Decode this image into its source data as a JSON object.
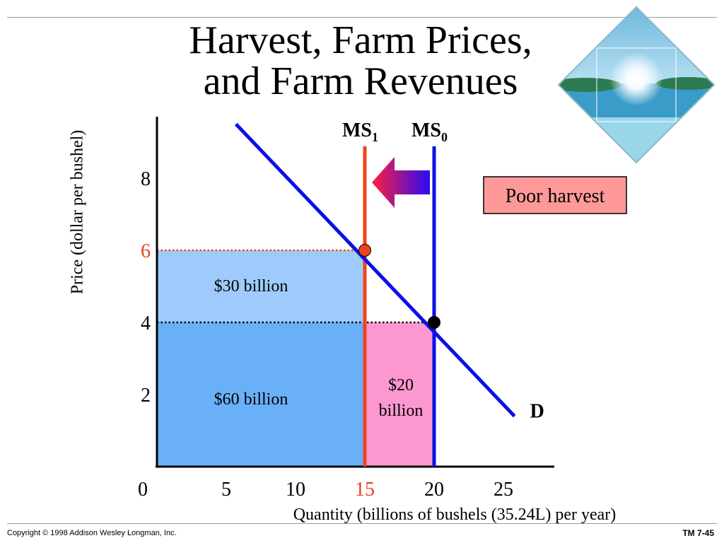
{
  "slide": {
    "title_line1": "Harvest, Farm Prices,",
    "title_line2": "and Farm Revenues",
    "copyright": "Copyright © 1998 Addison Wesley Longman, Inc.",
    "slide_number": "TM 7-45",
    "thumbnail_icon": "beach-scene-icon"
  },
  "chart_data": {
    "type": "line",
    "xlabel": "Quantity (billions of bushels (35.24L) per year)",
    "ylabel": "Price (dollar per bushel)",
    "xlim": [
      0,
      28
    ],
    "ylim": [
      0,
      10
    ],
    "x_ticks": [
      {
        "value": 0,
        "label": "0"
      },
      {
        "value": 5,
        "label": "5"
      },
      {
        "value": 10,
        "label": "10"
      },
      {
        "value": 15,
        "label": "15",
        "color": "#e4421a"
      },
      {
        "value": 20,
        "label": "20"
      },
      {
        "value": 25,
        "label": "25"
      }
    ],
    "y_ticks": [
      {
        "value": 2,
        "label": "2"
      },
      {
        "value": 4,
        "label": "4"
      },
      {
        "value": 6,
        "label": "6",
        "color": "#e4421a"
      },
      {
        "value": 8,
        "label": "8"
      }
    ],
    "demand": {
      "label": "D",
      "points": [
        [
          5.7,
          9.5
        ],
        [
          25.8,
          1.4
        ]
      ],
      "color": "#0a10e6"
    },
    "supply_curves": [
      {
        "label_main": "MS",
        "label_sub": "1",
        "quantity": 15,
        "color": "#f0421c"
      },
      {
        "label_main": "MS",
        "label_sub": "0",
        "quantity": 20,
        "color": "#0a10e6"
      }
    ],
    "equilibria": [
      {
        "quantity": 15,
        "price": 6,
        "color": "#f0421c"
      },
      {
        "quantity": 20,
        "price": 4,
        "color": "#000000"
      }
    ],
    "revenue_areas": [
      {
        "label": "$30 billion",
        "x_range": [
          0,
          15
        ],
        "y_range": [
          4,
          6
        ],
        "color": "#9ecbfb"
      },
      {
        "label": "$60 billion",
        "x_range": [
          0,
          15
        ],
        "y_range": [
          0,
          4
        ],
        "color": "#6ab0f8"
      },
      {
        "label_line1": "$20",
        "label_line2": "billion",
        "x_range": [
          15,
          20
        ],
        "y_range": [
          0,
          4
        ],
        "color": "#fc98cf"
      }
    ],
    "annotation": {
      "text": "Poor harvest",
      "fill": "#ff9999"
    },
    "shift_arrow": {
      "from_quantity": 20,
      "to_quantity": 15
    }
  }
}
